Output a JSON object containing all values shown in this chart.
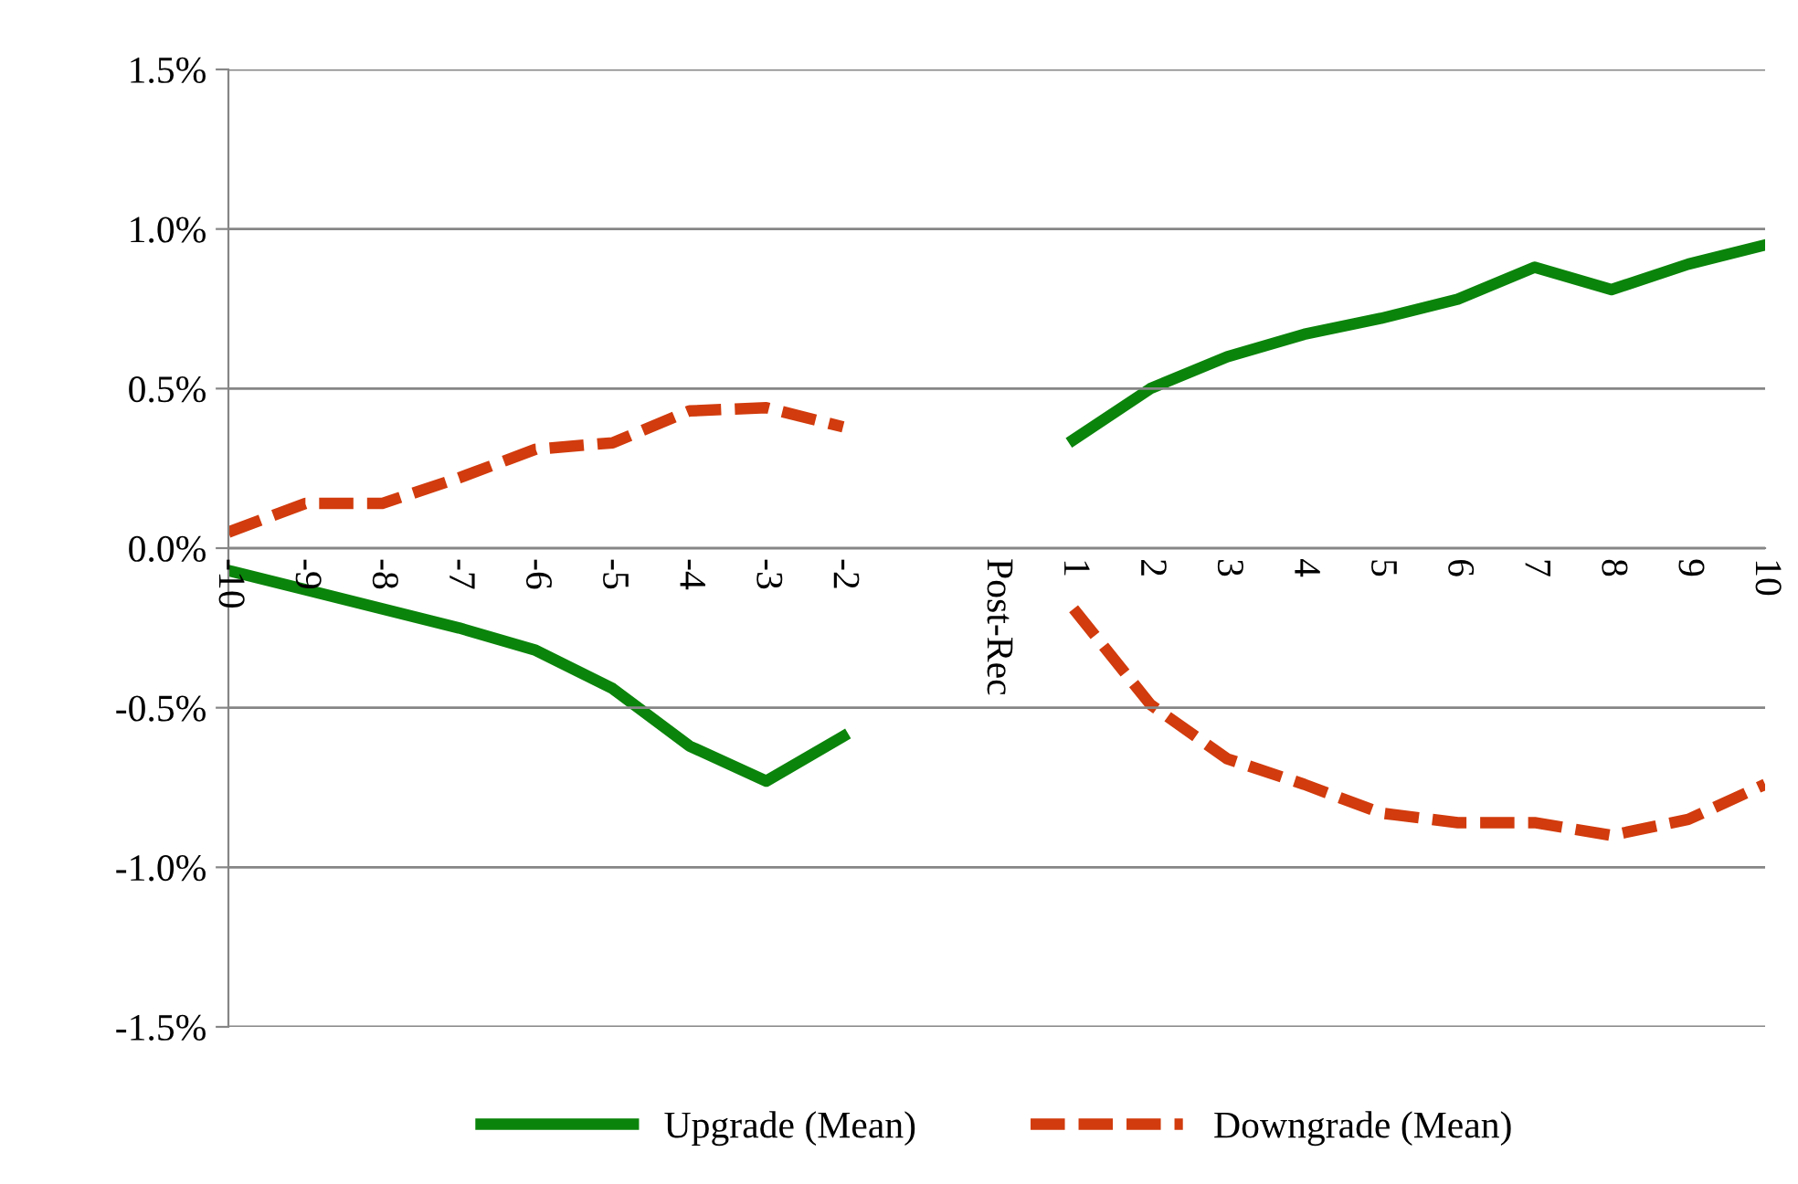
{
  "chart_data": {
    "type": "line",
    "categories": [
      "-10",
      "-9",
      "-8",
      "-7",
      "-6",
      "-5",
      "-4",
      "-3",
      "-2",
      null,
      "Post-Rec",
      "1",
      "2",
      "3",
      "4",
      "5",
      "6",
      "7",
      "8",
      "9",
      "10"
    ],
    "series": [
      {
        "name": "Upgrade (Mean)",
        "color": "#0b840b",
        "line_style": "solid",
        "values": [
          -0.07,
          -0.13,
          -0.19,
          -0.25,
          -0.32,
          -0.44,
          -0.62,
          -0.73,
          -0.59,
          null,
          null,
          0.34,
          0.5,
          0.6,
          0.67,
          0.72,
          0.78,
          0.88,
          0.81,
          0.89,
          0.95
        ]
      },
      {
        "name": "Downgrade (Mean)",
        "color": "#d13b0d",
        "line_style": "dashed",
        "values": [
          0.05,
          0.14,
          0.14,
          0.22,
          0.31,
          0.33,
          0.43,
          0.44,
          0.38,
          null,
          null,
          -0.19,
          -0.49,
          -0.66,
          -0.74,
          -0.83,
          -0.86,
          -0.86,
          -0.9,
          -0.85,
          -0.74
        ]
      }
    ],
    "ylim": [
      -1.5,
      1.5
    ],
    "yticks": [
      {
        "value": -1.5,
        "label": "-1.5%"
      },
      {
        "value": -1.0,
        "label": "-1.0%"
      },
      {
        "value": -0.5,
        "label": "-0.5%"
      },
      {
        "value": 0.0,
        "label": "0.0%"
      },
      {
        "value": 0.5,
        "label": "0.5%"
      },
      {
        "value": 1.0,
        "label": "1.0%"
      },
      {
        "value": 1.5,
        "label": "1.5%"
      }
    ],
    "grid": "y",
    "legend": "bottom",
    "marker": "none"
  }
}
